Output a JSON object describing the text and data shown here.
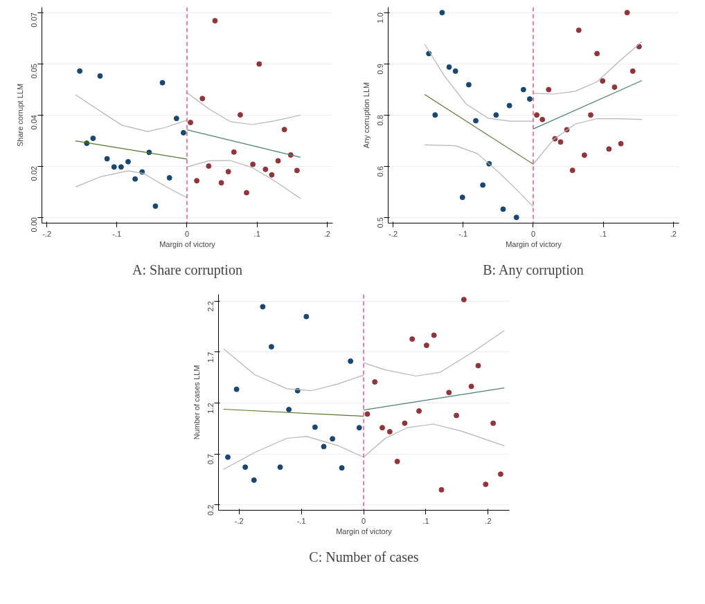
{
  "chart_data": [
    {
      "type": "scatter",
      "title": "A: Share corruption",
      "xlabel": "Margin of victory",
      "ylabel": "Share corrupt LLM",
      "grid": "y",
      "xlim": [
        -0.207,
        0.208
      ],
      "ylim": [
        -0.002,
        0.0718
      ],
      "xticks": [
        {
          "value": -0.2,
          "label": "-.2"
        },
        {
          "value": -0.1,
          "label": "-.1"
        },
        {
          "value": 0,
          "label": "0"
        },
        {
          "value": 0.1,
          "label": ".1"
        },
        {
          "value": 0.2,
          "label": ".2"
        }
      ],
      "yticks": [
        {
          "value": 0,
          "label": "0.00"
        },
        {
          "value": 0.0175,
          "label": "0.02"
        },
        {
          "value": 0.035,
          "label": "0.04"
        },
        {
          "value": 0.0525,
          "label": "0.05"
        },
        {
          "value": 0.07,
          "label": "0.07"
        }
      ],
      "ref_lines": [
        {
          "axis": "x",
          "value": 0,
          "color": "#e8557a",
          "line_style": "dashed"
        }
      ],
      "series": [
        {
          "marker": "circle",
          "color": "#1a476f",
          "x": [
            -0.153,
            -0.143,
            -0.134,
            -0.124,
            -0.114,
            -0.104,
            -0.094,
            -0.084,
            -0.074,
            -0.064,
            -0.054,
            -0.045,
            -0.035,
            -0.025,
            -0.015,
            -0.005
          ],
          "values": [
            0.05,
            0.0253,
            0.027,
            0.0483,
            0.02,
            0.0172,
            0.0172,
            0.019,
            0.0131,
            0.0155,
            0.0222,
            0.0038,
            0.046,
            0.0135,
            0.0338,
            0.0289
          ]
        },
        {
          "marker": "circle",
          "color": "#90353b",
          "x": [
            0.005,
            0.014,
            0.022,
            0.031,
            0.04,
            0.049,
            0.059,
            0.067,
            0.076,
            0.085,
            0.094,
            0.103,
            0.112,
            0.121,
            0.13,
            0.139,
            0.148,
            0.157
          ],
          "values": [
            0.0324,
            0.0125,
            0.0406,
            0.0175,
            0.0672,
            0.0118,
            0.0156,
            0.0223,
            0.035,
            0.0084,
            0.0181,
            0.0524,
            0.0164,
            0.0145,
            0.0193,
            0.03,
            0.0213,
            0.016
          ]
        },
        {
          "type": "line",
          "color": "#55752f",
          "x": [
            -0.159,
            0
          ],
          "values": [
            0.0261,
            0.0199
          ]
        },
        {
          "type": "line",
          "color": "#4e7f75",
          "x": [
            0,
            0.162
          ],
          "values": [
            0.0299,
            0.0205
          ]
        },
        {
          "type": "line",
          "color": "#b4b4b4",
          "x": [
            -0.159,
            -0.124,
            -0.093,
            -0.056,
            -0.031,
            0
          ],
          "values": [
            0.0419,
            0.0363,
            0.0315,
            0.0293,
            0.0307,
            0.0332
          ]
        },
        {
          "type": "line",
          "color": "#b4b4b4",
          "x": [
            -0.159,
            -0.124,
            -0.084,
            -0.062,
            -0.031,
            0
          ],
          "values": [
            0.0104,
            0.0138,
            0.0159,
            0.015,
            0.0106,
            0.0067
          ]
        },
        {
          "type": "line",
          "color": "#b4b4b4",
          "x": [
            0,
            0.031,
            0.062,
            0.093,
            0.124,
            0.162
          ],
          "values": [
            0.0426,
            0.0371,
            0.0327,
            0.0317,
            0.0329,
            0.0349
          ]
        },
        {
          "type": "line",
          "color": "#b4b4b4",
          "x": [
            0,
            0.031,
            0.062,
            0.093,
            0.124,
            0.162
          ],
          "values": [
            0.0172,
            0.0193,
            0.0194,
            0.017,
            0.0126,
            0.0064
          ]
        }
      ]
    },
    {
      "type": "scatter",
      "title": "B: Any corruption",
      "xlabel": "Margin of victory",
      "ylabel": "Any corruption LLM",
      "grid": "y",
      "xlim": [
        -0.207,
        0.208
      ],
      "ylim": [
        0.486,
        1.013
      ],
      "xticks": [
        {
          "value": -0.2,
          "label": "-.2"
        },
        {
          "value": -0.1,
          "label": "-.1"
        },
        {
          "value": 0,
          "label": "0"
        },
        {
          "value": 0.1,
          "label": ".1"
        },
        {
          "value": 0.2,
          "label": ".2"
        }
      ],
      "yticks": [
        {
          "value": 0.5,
          "label": "0.5"
        },
        {
          "value": 0.625,
          "label": "0.6"
        },
        {
          "value": 0.75,
          "label": "0.8"
        },
        {
          "value": 0.875,
          "label": "0.9"
        },
        {
          "value": 1.0,
          "label": "1.0"
        }
      ],
      "ref_lines": [
        {
          "axis": "x",
          "value": 0,
          "color": "#e8557a",
          "line_style": "dashed"
        }
      ],
      "series": [
        {
          "marker": "circle",
          "color": "#1a476f",
          "x": [
            -0.149,
            -0.14,
            -0.13,
            -0.12,
            -0.111,
            -0.101,
            -0.092,
            -0.082,
            -0.072,
            -0.063,
            -0.053,
            -0.043,
            -0.034,
            -0.024,
            -0.014,
            -0.005
          ],
          "values": [
            0.9,
            0.75,
            1.0,
            0.867,
            0.857,
            0.549,
            0.824,
            0.736,
            0.579,
            0.631,
            0.75,
            0.52,
            0.773,
            0.5,
            0.812,
            0.789
          ]
        },
        {
          "marker": "circle",
          "color": "#90353b",
          "x": [
            0.005,
            0.013,
            0.022,
            0.031,
            0.039,
            0.048,
            0.056,
            0.065,
            0.073,
            0.082,
            0.091,
            0.099,
            0.108,
            0.116,
            0.125,
            0.134,
            0.142,
            0.151
          ],
          "values": [
            0.75,
            0.739,
            0.812,
            0.692,
            0.684,
            0.714,
            0.615,
            0.957,
            0.652,
            0.75,
            0.9,
            0.833,
            0.667,
            0.818,
            0.68,
            1.0,
            0.857,
            0.917
          ]
        },
        {
          "type": "line",
          "color": "#55752f",
          "x": [
            -0.155,
            0
          ],
          "values": [
            0.8,
            0.63
          ]
        },
        {
          "type": "line",
          "color": "#4e7f75",
          "x": [
            0,
            0.155
          ],
          "values": [
            0.716,
            0.834
          ]
        },
        {
          "type": "line",
          "color": "#b4b4b4",
          "x": [
            -0.155,
            -0.127,
            -0.096,
            -0.064,
            -0.033,
            0
          ],
          "values": [
            0.923,
            0.846,
            0.777,
            0.742,
            0.735,
            0.735
          ]
        },
        {
          "type": "line",
          "color": "#b4b4b4",
          "x": [
            -0.155,
            -0.111,
            -0.08,
            -0.049,
            -0.018,
            0
          ],
          "values": [
            0.677,
            0.675,
            0.656,
            0.61,
            0.558,
            0.526
          ]
        },
        {
          "type": "line",
          "color": "#b4b4b4",
          "x": [
            0,
            0.029,
            0.06,
            0.091,
            0.122,
            0.155
          ],
          "values": [
            0.803,
            0.801,
            0.808,
            0.831,
            0.88,
            0.929
          ]
        },
        {
          "type": "line",
          "color": "#b4b4b4",
          "x": [
            0,
            0.029,
            0.06,
            0.091,
            0.122,
            0.155
          ],
          "values": [
            0.63,
            0.69,
            0.728,
            0.741,
            0.741,
            0.739
          ]
        }
      ]
    },
    {
      "type": "scatter",
      "title": "C: Number of cases",
      "xlabel": "Margin of victory",
      "ylabel": "Number of cases LLM",
      "grid": "y",
      "xlim": [
        -0.233,
        0.234
      ],
      "ylim": [
        0.147,
        2.265
      ],
      "xticks": [
        {
          "value": -0.2,
          "label": "-.2"
        },
        {
          "value": -0.1,
          "label": "-.1"
        },
        {
          "value": 0,
          "label": "0"
        },
        {
          "value": 0.1,
          "label": ".1"
        },
        {
          "value": 0.2,
          "label": ".2"
        }
      ],
      "yticks": [
        0.2,
        0.7,
        1.2,
        1.7,
        2.2
      ],
      "ref_lines": [
        {
          "axis": "x",
          "value": 0,
          "color": "#e8557a",
          "line_style": "dashed"
        }
      ],
      "series": [
        {
          "marker": "circle",
          "color": "#1a476f",
          "x": [
            -0.218,
            -0.204,
            -0.19,
            -0.176,
            -0.162,
            -0.148,
            -0.134,
            -0.12,
            -0.106,
            -0.092,
            -0.078,
            -0.064,
            -0.05,
            -0.035,
            -0.021,
            -0.007
          ],
          "values": [
            0.668,
            1.334,
            0.57,
            0.443,
            2.144,
            1.751,
            0.57,
            1.135,
            1.32,
            2.047,
            0.962,
            0.772,
            0.848,
            0.563,
            1.61,
            0.957
          ]
        },
        {
          "marker": "circle",
          "color": "#90353b",
          "x": [
            0.006,
            0.018,
            0.03,
            0.042,
            0.054,
            0.066,
            0.078,
            0.089,
            0.101,
            0.113,
            0.125,
            0.137,
            0.149,
            0.161,
            0.173,
            0.184,
            0.196,
            0.208,
            0.22
          ],
          "values": [
            1.091,
            1.406,
            0.957,
            0.918,
            0.626,
            1.001,
            1.827,
            1.121,
            1.765,
            1.864,
            0.348,
            1.302,
            1.077,
            2.214,
            1.362,
            1.566,
            0.401,
            1.001,
            0.501
          ]
        },
        {
          "type": "line",
          "color": "#55752f",
          "x": [
            -0.225,
            0
          ],
          "values": [
            1.138,
            1.07
          ]
        },
        {
          "type": "line",
          "color": "#4e7f75",
          "x": [
            0,
            0.226
          ],
          "values": [
            1.131,
            1.348
          ]
        },
        {
          "type": "line",
          "color": "#b4b4b4",
          "x": [
            -0.225,
            -0.175,
            -0.123,
            -0.084,
            -0.042,
            0
          ],
          "values": [
            1.732,
            1.478,
            1.339,
            1.32,
            1.385,
            1.473
          ]
        },
        {
          "type": "line",
          "color": "#b4b4b4",
          "x": [
            -0.225,
            -0.175,
            -0.123,
            -0.091,
            -0.042,
            0
          ],
          "values": [
            0.547,
            0.714,
            0.853,
            0.871,
            0.783,
            0.668
          ]
        },
        {
          "type": "line",
          "color": "#b4b4b4",
          "x": [
            0,
            0.035,
            0.084,
            0.123,
            0.175,
            0.226
          ],
          "values": [
            1.594,
            1.524,
            1.464,
            1.501,
            1.698,
            1.911
          ]
        },
        {
          "type": "line",
          "color": "#b4b4b4",
          "x": [
            0,
            0.035,
            0.07,
            0.112,
            0.158,
            0.226
          ],
          "values": [
            0.668,
            0.853,
            0.957,
            0.992,
            0.922,
            0.779
          ]
        }
      ]
    }
  ]
}
